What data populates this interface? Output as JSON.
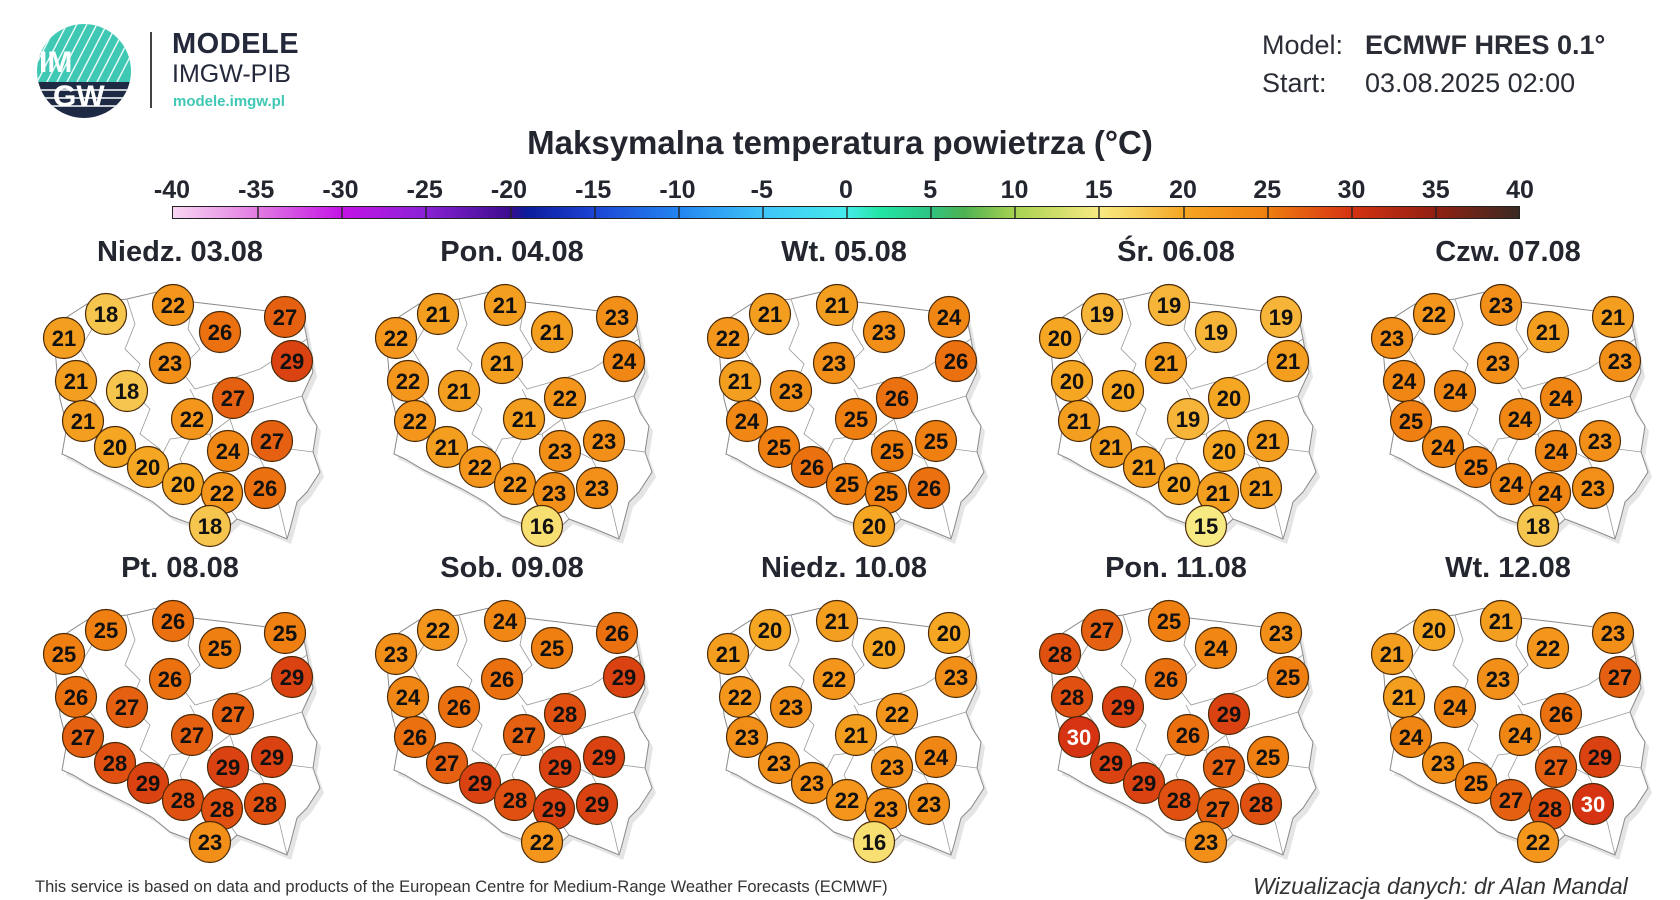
{
  "header": {
    "logo_text_top": "IM",
    "logo_text_bottom": "GW",
    "brand_title": "MODELE",
    "brand_subtitle": "IMGW-PIB",
    "brand_url": "modele.imgw.pl",
    "model_label": "Model:",
    "model_value": "ECMWF HRES 0.1°",
    "start_label": "Start:",
    "start_value": "03.08.2025 02:00"
  },
  "colors": {
    "accent_teal": "#3fc8b4",
    "logo_navy": "#1e2a44"
  },
  "chart_data": {
    "type": "map-points",
    "title": "Maksymalna temperatura powietrza (°C)",
    "colorbar": {
      "range": [
        -40,
        40
      ],
      "ticks": [
        "-40",
        "-35",
        "-30",
        "-25",
        "-20",
        "-15",
        "-10",
        "-5",
        "0",
        "5",
        "10",
        "15",
        "20",
        "25",
        "30",
        "35",
        "40"
      ],
      "stops": [
        [
          -40,
          "#f9d6f3"
        ],
        [
          -35,
          "#e27ce2"
        ],
        [
          -30,
          "#c414e6"
        ],
        [
          -25,
          "#8a22d6"
        ],
        [
          -20,
          "#3c0c8e"
        ],
        [
          -19,
          "#0c1c9c"
        ],
        [
          -15,
          "#1c44d4"
        ],
        [
          -10,
          "#2384f0"
        ],
        [
          -5,
          "#3ec4f8"
        ],
        [
          0,
          "#46ecec"
        ],
        [
          2,
          "#22e6a4"
        ],
        [
          5,
          "#2ec482"
        ],
        [
          7,
          "#4eb252"
        ],
        [
          10,
          "#a6d250"
        ],
        [
          15,
          "#f8ea82"
        ],
        [
          17,
          "#f7d462"
        ],
        [
          20,
          "#f5a623"
        ],
        [
          25,
          "#ef7f10"
        ],
        [
          30,
          "#d63312"
        ],
        [
          35,
          "#922012"
        ],
        [
          40,
          "#3a2a22"
        ]
      ]
    },
    "maps": [
      {
        "label": "Niedz. 03.08",
        "values": [
          18,
          22,
          27,
          21,
          26,
          29,
          23,
          21,
          18,
          27,
          21,
          22,
          27,
          20,
          24,
          20,
          20,
          22,
          26,
          18
        ]
      },
      {
        "label": "Pon. 04.08",
        "values": [
          21,
          21,
          23,
          22,
          21,
          24,
          21,
          22,
          21,
          22,
          22,
          21,
          23,
          21,
          23,
          22,
          22,
          23,
          23,
          16
        ]
      },
      {
        "label": "Wt. 05.08",
        "values": [
          21,
          21,
          24,
          22,
          23,
          26,
          23,
          21,
          23,
          26,
          24,
          25,
          25,
          25,
          25,
          26,
          25,
          25,
          26,
          20
        ]
      },
      {
        "label": "Śr. 06.08",
        "values": [
          19,
          19,
          19,
          20,
          19,
          21,
          21,
          20,
          20,
          20,
          21,
          19,
          21,
          21,
          20,
          21,
          20,
          21,
          21,
          15
        ]
      },
      {
        "label": "Czw. 07.08",
        "values": [
          22,
          23,
          21,
          23,
          21,
          23,
          23,
          24,
          24,
          24,
          25,
          24,
          23,
          24,
          24,
          25,
          24,
          24,
          23,
          18
        ]
      },
      {
        "label": "Pt. 08.08",
        "values": [
          25,
          26,
          25,
          25,
          25,
          29,
          26,
          26,
          27,
          27,
          27,
          27,
          29,
          28,
          29,
          29,
          28,
          28,
          28,
          23
        ]
      },
      {
        "label": "Sob. 09.08",
        "values": [
          22,
          24,
          26,
          23,
          25,
          29,
          26,
          24,
          26,
          28,
          26,
          27,
          29,
          27,
          29,
          29,
          28,
          29,
          29,
          22
        ]
      },
      {
        "label": "Niedz. 10.08",
        "values": [
          20,
          21,
          20,
          21,
          20,
          23,
          22,
          22,
          23,
          22,
          23,
          21,
          24,
          23,
          23,
          23,
          22,
          23,
          23,
          16
        ]
      },
      {
        "label": "Pon. 11.08",
        "values": [
          27,
          25,
          23,
          28,
          24,
          25,
          26,
          28,
          29,
          29,
          30,
          26,
          25,
          29,
          27,
          29,
          28,
          27,
          28,
          23
        ]
      },
      {
        "label": "Wt. 12.08",
        "values": [
          20,
          21,
          23,
          21,
          22,
          27,
          23,
          21,
          24,
          26,
          24,
          24,
          29,
          23,
          27,
          25,
          27,
          28,
          30,
          22
        ]
      }
    ]
  },
  "footer": {
    "source": "This service is based on data and products of the European Centre for Medium-Range Weather Forecasts (ECMWF)",
    "credit": "Wizualizacja danych: dr Alan Mandal"
  }
}
